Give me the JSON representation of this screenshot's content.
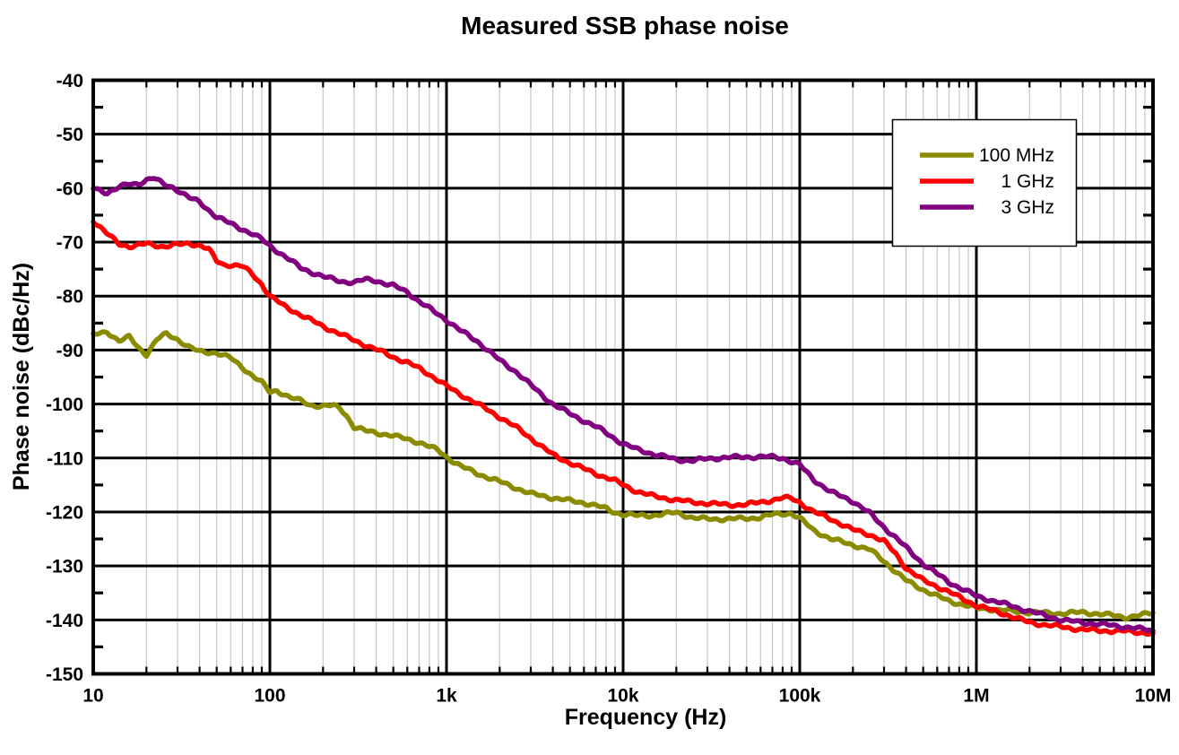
{
  "chart_data": {
    "type": "line",
    "title": "Measured SSB phase noise",
    "xlabel": "Frequency (Hz)",
    "ylabel": "Phase noise (dBc/Hz)",
    "x_scale": "log",
    "xlim": [
      10,
      10000000
    ],
    "ylim": [
      -150,
      -40
    ],
    "grid": {
      "major_color": "#000000",
      "minor_color": "#c6c6c6",
      "x_minor": true,
      "y_major_step": 10
    },
    "x_ticks": [
      {
        "value": 10,
        "label": "10"
      },
      {
        "value": 100,
        "label": "100"
      },
      {
        "value": 1000,
        "label": "1k"
      },
      {
        "value": 10000,
        "label": "10k"
      },
      {
        "value": 100000,
        "label": "100k"
      },
      {
        "value": 1000000,
        "label": "1M"
      },
      {
        "value": 10000000,
        "label": "10M"
      }
    ],
    "y_ticks": [
      {
        "value": -40,
        "label": "-40"
      },
      {
        "value": -50,
        "label": "-50"
      },
      {
        "value": -60,
        "label": "-60"
      },
      {
        "value": -70,
        "label": "-70"
      },
      {
        "value": -80,
        "label": "-80"
      },
      {
        "value": -90,
        "label": "-90"
      },
      {
        "value": -100,
        "label": "-100"
      },
      {
        "value": -110,
        "label": "-110"
      },
      {
        "value": -120,
        "label": "-120"
      },
      {
        "value": -130,
        "label": "-130"
      },
      {
        "value": -140,
        "label": "-140"
      },
      {
        "value": -150,
        "label": "-150"
      }
    ],
    "legend": {
      "position": "top-right",
      "entries": [
        {
          "label": "100 MHz",
          "color": "#8B8B00"
        },
        {
          "label": "1 GHz",
          "color": "#FF0000"
        },
        {
          "label": "3 GHz",
          "color": "#800080"
        }
      ]
    },
    "series": [
      {
        "name": "100 MHz",
        "color": "#8B8B00",
        "points": [
          [
            10,
            -87.2
          ],
          [
            12,
            -86.6
          ],
          [
            14,
            -88.3
          ],
          [
            16,
            -87.6
          ],
          [
            18,
            -89.5
          ],
          [
            20,
            -90.8
          ],
          [
            23,
            -88.0
          ],
          [
            26,
            -87.0
          ],
          [
            30,
            -88.0
          ],
          [
            35,
            -89.5
          ],
          [
            40,
            -90.3
          ],
          [
            50,
            -90.5
          ],
          [
            60,
            -91.5
          ],
          [
            70,
            -93.2
          ],
          [
            80,
            -94.8
          ],
          [
            90,
            -96.0
          ],
          [
            100,
            -97.8
          ],
          [
            110,
            -97.5
          ],
          [
            130,
            -98.8
          ],
          [
            150,
            -99.4
          ],
          [
            170,
            -100.2
          ],
          [
            200,
            -100.4
          ],
          [
            230,
            -100.3
          ],
          [
            250,
            -100.8
          ],
          [
            270,
            -102.0
          ],
          [
            300,
            -104.3
          ],
          [
            350,
            -105.0
          ],
          [
            400,
            -105.3
          ],
          [
            500,
            -105.9
          ],
          [
            600,
            -106.5
          ],
          [
            700,
            -107.1
          ],
          [
            800,
            -107.9
          ],
          [
            900,
            -108.6
          ],
          [
            1000,
            -109.8
          ],
          [
            1200,
            -111.5
          ],
          [
            1500,
            -112.9
          ],
          [
            2000,
            -114.4
          ],
          [
            2500,
            -115.6
          ],
          [
            3000,
            -116.6
          ],
          [
            4000,
            -117.4
          ],
          [
            5000,
            -117.9
          ],
          [
            6000,
            -118.3
          ],
          [
            7000,
            -118.8
          ],
          [
            8000,
            -119.4
          ],
          [
            9000,
            -120.1
          ],
          [
            10000,
            -120.4
          ],
          [
            12000,
            -120.7
          ],
          [
            15000,
            -120.6
          ],
          [
            20000,
            -120.1
          ],
          [
            25000,
            -121.1
          ],
          [
            30000,
            -121.3
          ],
          [
            40000,
            -121.3
          ],
          [
            50000,
            -121.2
          ],
          [
            60000,
            -121.0
          ],
          [
            70000,
            -120.5
          ],
          [
            80000,
            -120.3
          ],
          [
            90000,
            -120.3
          ],
          [
            100000,
            -121.2
          ],
          [
            120000,
            -123.4
          ],
          [
            150000,
            -125.0
          ],
          [
            200000,
            -126.1
          ],
          [
            250000,
            -127.0
          ],
          [
            300000,
            -129.1
          ],
          [
            350000,
            -131.1
          ],
          [
            400000,
            -132.7
          ],
          [
            500000,
            -134.4
          ],
          [
            600000,
            -135.6
          ],
          [
            700000,
            -136.5
          ],
          [
            800000,
            -137.0
          ],
          [
            1000000,
            -137.8
          ],
          [
            1500000,
            -138.3
          ],
          [
            2000000,
            -138.6
          ],
          [
            3000000,
            -138.8
          ],
          [
            4000000,
            -138.6
          ],
          [
            5000000,
            -138.9
          ],
          [
            6000000,
            -139.2
          ],
          [
            7000000,
            -139.5
          ],
          [
            8000000,
            -139.3
          ],
          [
            10000000,
            -138.7
          ]
        ]
      },
      {
        "name": "1 GHz",
        "color": "#FF0000",
        "points": [
          [
            10,
            -66.0
          ],
          [
            12,
            -68.5
          ],
          [
            14,
            -70.3
          ],
          [
            16,
            -70.8
          ],
          [
            18,
            -70.6
          ],
          [
            20,
            -70.3
          ],
          [
            25,
            -70.8
          ],
          [
            30,
            -70.5
          ],
          [
            35,
            -70.2
          ],
          [
            40,
            -70.6
          ],
          [
            45,
            -71.3
          ],
          [
            50,
            -73.5
          ],
          [
            55,
            -74.2
          ],
          [
            60,
            -74.2
          ],
          [
            70,
            -74.5
          ],
          [
            80,
            -76.0
          ],
          [
            90,
            -77.8
          ],
          [
            100,
            -80.0
          ],
          [
            120,
            -81.8
          ],
          [
            150,
            -83.5
          ],
          [
            200,
            -85.6
          ],
          [
            250,
            -87.0
          ],
          [
            300,
            -88.2
          ],
          [
            400,
            -89.9
          ],
          [
            450,
            -90.6
          ],
          [
            500,
            -91.3
          ],
          [
            600,
            -92.3
          ],
          [
            700,
            -93.4
          ],
          [
            800,
            -94.5
          ],
          [
            900,
            -95.6
          ],
          [
            1000,
            -96.7
          ],
          [
            1200,
            -98.2
          ],
          [
            1500,
            -100.0
          ],
          [
            2000,
            -102.4
          ],
          [
            2500,
            -104.4
          ],
          [
            3000,
            -106.3
          ],
          [
            3500,
            -108.0
          ],
          [
            4000,
            -109.4
          ],
          [
            5000,
            -110.9
          ],
          [
            6000,
            -112.0
          ],
          [
            7000,
            -112.9
          ],
          [
            8000,
            -113.6
          ],
          [
            9000,
            -114.2
          ],
          [
            10000,
            -115.0
          ],
          [
            12000,
            -116.2
          ],
          [
            15000,
            -117.1
          ],
          [
            20000,
            -117.8
          ],
          [
            25000,
            -118.2
          ],
          [
            30000,
            -118.4
          ],
          [
            40000,
            -118.7
          ],
          [
            50000,
            -118.6
          ],
          [
            60000,
            -118.2
          ],
          [
            70000,
            -117.8
          ],
          [
            80000,
            -117.4
          ],
          [
            90000,
            -117.5
          ],
          [
            100000,
            -118.2
          ],
          [
            120000,
            -120.0
          ],
          [
            150000,
            -121.3
          ],
          [
            200000,
            -123.3
          ],
          [
            250000,
            -124.2
          ],
          [
            300000,
            -125.4
          ],
          [
            350000,
            -127.8
          ],
          [
            400000,
            -130.4
          ],
          [
            500000,
            -132.7
          ],
          [
            600000,
            -133.8
          ],
          [
            700000,
            -134.8
          ],
          [
            800000,
            -135.8
          ],
          [
            1000000,
            -137.3
          ],
          [
            1500000,
            -139.1
          ],
          [
            2000000,
            -140.5
          ],
          [
            3000000,
            -141.3
          ],
          [
            4000000,
            -141.8
          ],
          [
            5000000,
            -142.0
          ],
          [
            7000000,
            -142.1
          ],
          [
            10000000,
            -142.5
          ]
        ]
      },
      {
        "name": "3 GHz",
        "color": "#800080",
        "points": [
          [
            10,
            -60.1
          ],
          [
            12,
            -60.8
          ],
          [
            14,
            -59.8
          ],
          [
            16,
            -59.3
          ],
          [
            18,
            -59.2
          ],
          [
            20,
            -58.4
          ],
          [
            22,
            -58.1
          ],
          [
            25,
            -59.3
          ],
          [
            28,
            -59.8
          ],
          [
            30,
            -60.3
          ],
          [
            35,
            -61.8
          ],
          [
            40,
            -62.6
          ],
          [
            50,
            -65.3
          ],
          [
            60,
            -66.6
          ],
          [
            70,
            -67.6
          ],
          [
            80,
            -68.5
          ],
          [
            90,
            -69.5
          ],
          [
            100,
            -70.7
          ],
          [
            120,
            -72.5
          ],
          [
            150,
            -74.8
          ],
          [
            200,
            -76.4
          ],
          [
            250,
            -77.2
          ],
          [
            300,
            -77.5
          ],
          [
            350,
            -76.9
          ],
          [
            400,
            -77.1
          ],
          [
            450,
            -77.7
          ],
          [
            500,
            -78.1
          ],
          [
            600,
            -79.2
          ],
          [
            700,
            -81.0
          ],
          [
            800,
            -82.3
          ],
          [
            900,
            -83.4
          ],
          [
            1000,
            -84.4
          ],
          [
            1200,
            -86.4
          ],
          [
            1500,
            -88.4
          ],
          [
            2000,
            -91.9
          ],
          [
            2500,
            -94.1
          ],
          [
            3000,
            -96.5
          ],
          [
            3500,
            -98.4
          ],
          [
            4000,
            -100.0
          ],
          [
            5000,
            -101.8
          ],
          [
            6000,
            -103.1
          ],
          [
            7000,
            -104.2
          ],
          [
            8000,
            -105.3
          ],
          [
            9000,
            -106.4
          ],
          [
            10000,
            -107.4
          ],
          [
            12000,
            -108.4
          ],
          [
            15000,
            -109.3
          ],
          [
            20000,
            -110.3
          ],
          [
            25000,
            -110.5
          ],
          [
            30000,
            -110.1
          ],
          [
            40000,
            -109.9
          ],
          [
            50000,
            -109.8
          ],
          [
            60000,
            -109.8
          ],
          [
            70000,
            -109.8
          ],
          [
            80000,
            -110.0
          ],
          [
            100000,
            -111.3
          ],
          [
            120000,
            -114.0
          ],
          [
            150000,
            -116.3
          ],
          [
            200000,
            -118.0
          ],
          [
            250000,
            -120.3
          ],
          [
            300000,
            -122.8
          ],
          [
            350000,
            -124.8
          ],
          [
            400000,
            -126.6
          ],
          [
            500000,
            -129.6
          ],
          [
            600000,
            -131.5
          ],
          [
            700000,
            -133.0
          ],
          [
            800000,
            -134.0
          ],
          [
            1000000,
            -135.6
          ],
          [
            1500000,
            -137.2
          ],
          [
            2000000,
            -138.4
          ],
          [
            3000000,
            -140.0
          ],
          [
            4000000,
            -140.5
          ],
          [
            5000000,
            -140.8
          ],
          [
            7000000,
            -141.3
          ],
          [
            10000000,
            -142.0
          ]
        ]
      }
    ]
  }
}
